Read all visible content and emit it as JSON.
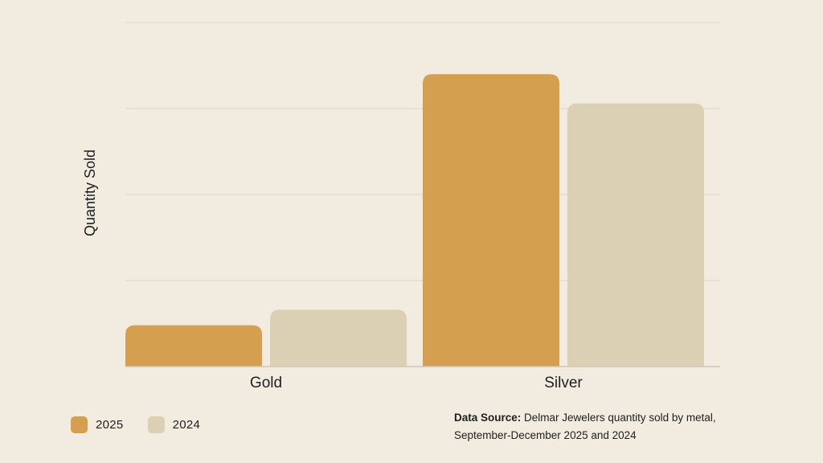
{
  "chart_data": {
    "type": "bar",
    "categories": [
      "Gold",
      "Silver"
    ],
    "series": [
      {
        "name": "2025",
        "values": [
          24,
          170
        ],
        "color": "#d4a050"
      },
      {
        "name": "2024",
        "values": [
          33,
          153
        ],
        "color": "#dbd0b4"
      }
    ],
    "xlabel": "",
    "ylabel": "Quantity Sold",
    "ylim": [
      0,
      200
    ],
    "grid": true,
    "legend_position": "bottom-left"
  },
  "source": {
    "key": "Data Source:",
    "text": "Delmar Jewelers quantity sold by metal, September-December 2025 and 2024"
  },
  "colors": {
    "background": "#f1ebe0",
    "gridline": "#ddd5c8",
    "axis": "#cfc6b6"
  }
}
